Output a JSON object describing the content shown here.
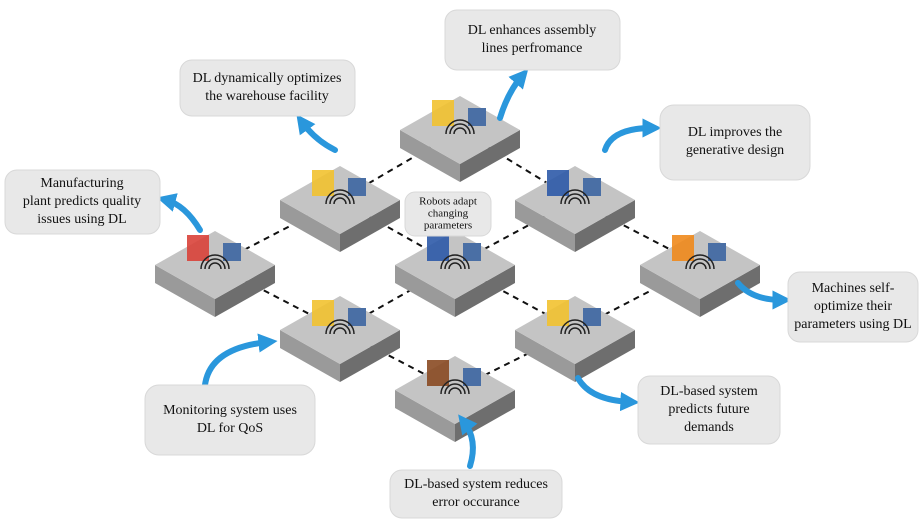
{
  "callouts": [
    {
      "lines": [
        "DL enhances assembly",
        "lines perfromance"
      ]
    },
    {
      "lines": [
        "DL dynamically optimizes",
        "the warehouse facility"
      ]
    },
    {
      "lines": [
        "DL improves the",
        "generative design"
      ]
    },
    {
      "lines": [
        "Manufacturing",
        "plant predicts quality",
        "issues using DL"
      ]
    },
    {
      "lines": [
        "Machines self-",
        "optimize their",
        "parameters using DL"
      ]
    },
    {
      "lines": [
        "DL-based system",
        "predicts future",
        "demands"
      ]
    },
    {
      "lines": [
        "Monitoring system uses",
        "DL for QoS"
      ]
    },
    {
      "lines": [
        "DL-based system reduces",
        "error occurance"
      ]
    }
  ],
  "center": {
    "lines": [
      "Robots adapt",
      "changing",
      "parameters"
    ]
  }
}
